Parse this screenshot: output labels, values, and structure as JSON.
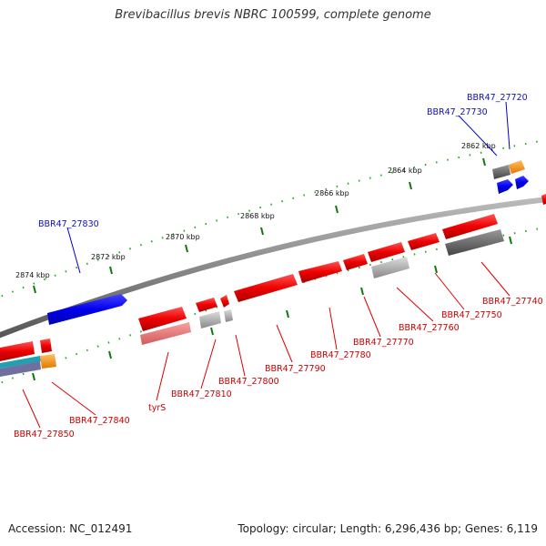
{
  "title": "Brevibacillus brevis NBRC 100599, complete genome",
  "footer": {
    "accession": "Accession: NC_012491",
    "topology": "Topology: circular; Length: 6,296,436 bp; Genes: 6,119"
  },
  "colors": {
    "forward_label": "#1010bb",
    "reverse_label": "#cc0000",
    "forward_gene": "#0000ff",
    "reverse_gene": "#ff0000",
    "rna_gene": "#f08080",
    "pseudo_gene": "#999999",
    "other_feature": "#ff9900",
    "backbone": "#888888",
    "tick": "#22aa22"
  },
  "scale_ticks": [
    "2862 kbp",
    "2864 kbp",
    "2866 kbp",
    "2868 kbp",
    "2870 kbp",
    "2872 kbp",
    "2874 kbp"
  ],
  "labels": {
    "forward": [
      "BBR47_27720",
      "BBR47_27730",
      "BBR47_27830"
    ],
    "reverse": [
      "BBR47_27740",
      "BBR47_27750",
      "BBR47_27760",
      "BBR47_27770",
      "BBR47_27780",
      "BBR47_27790",
      "BBR47_27800",
      "BBR47_27810",
      "tyrS",
      "BBR47_27840",
      "BBR47_27850"
    ]
  }
}
